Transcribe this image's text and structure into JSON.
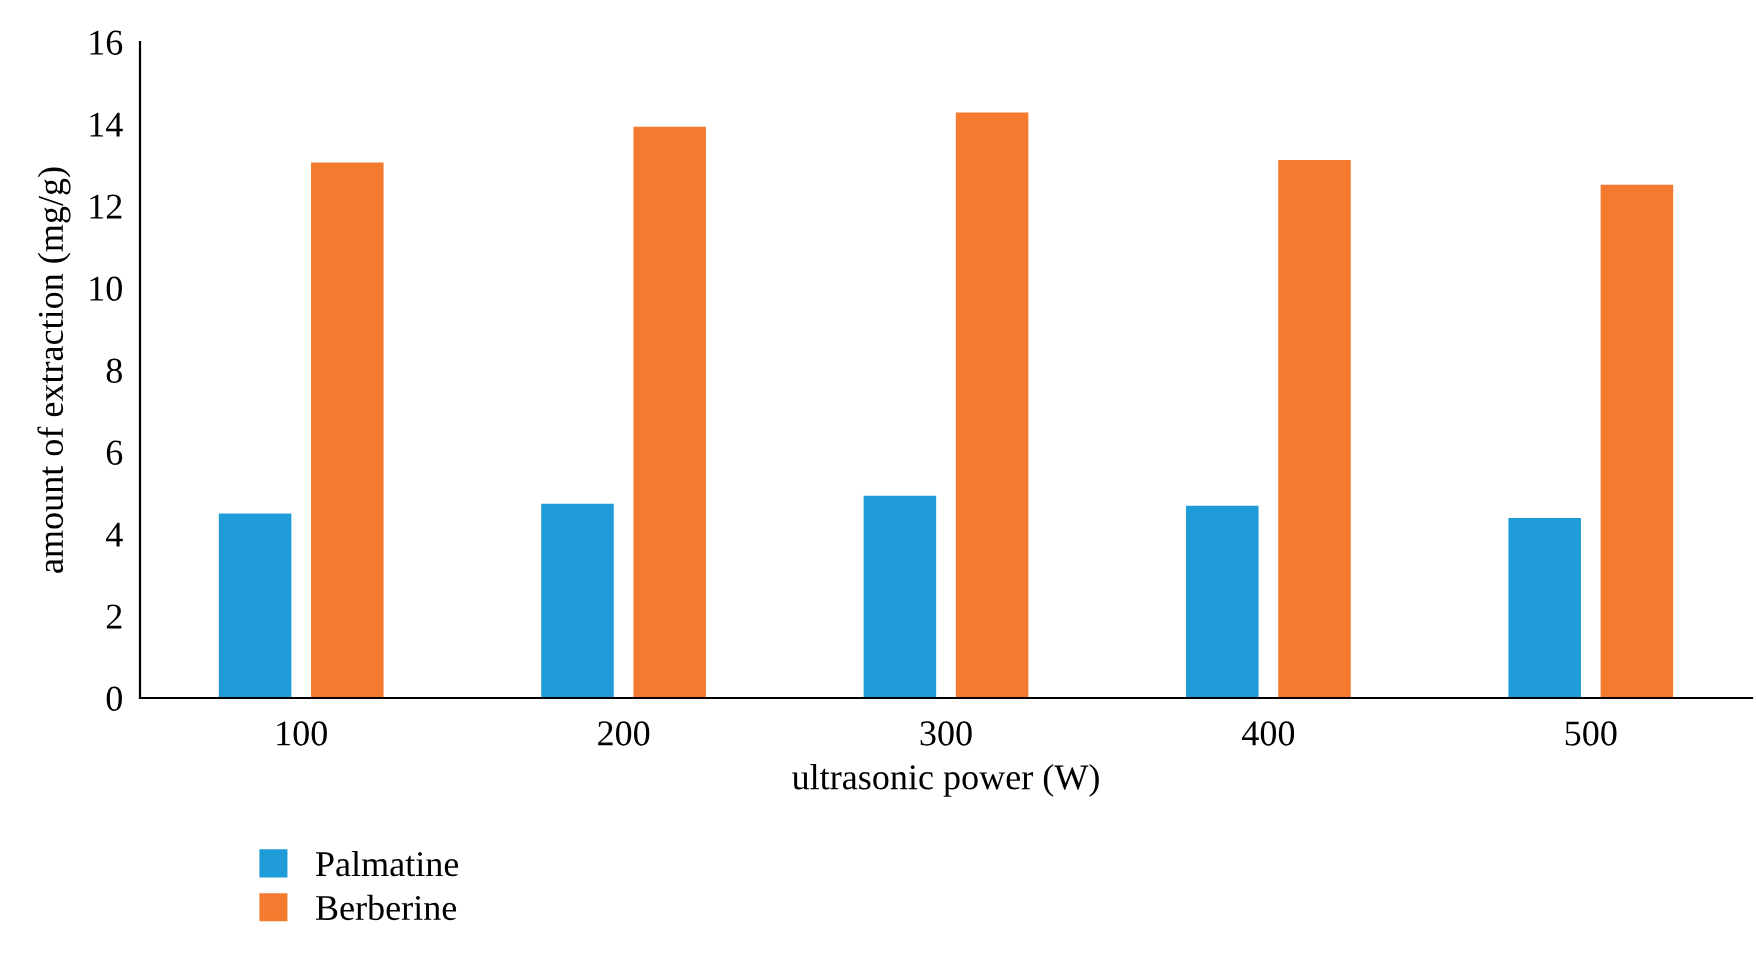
{
  "chart_data": {
    "type": "bar",
    "xlabel": "ultrasonic power (W)",
    "ylabel": "amount of extraction (mg/g)",
    "categories": [
      "100",
      "200",
      "300",
      "400",
      "500"
    ],
    "series": [
      {
        "name": "Palmatine",
        "color": "#1f9cd7",
        "values": [
          4.5,
          4.74,
          4.93,
          4.69,
          4.39
        ]
      },
      {
        "name": "Berberine",
        "color": "#f47a2f",
        "values": [
          13.06,
          13.93,
          14.28,
          13.12,
          12.52
        ]
      }
    ],
    "ylim": [
      0,
      16
    ],
    "yticks": [
      0,
      2,
      4,
      6,
      8,
      10,
      12,
      14,
      16
    ],
    "grid": false,
    "legend": "bottom left"
  }
}
